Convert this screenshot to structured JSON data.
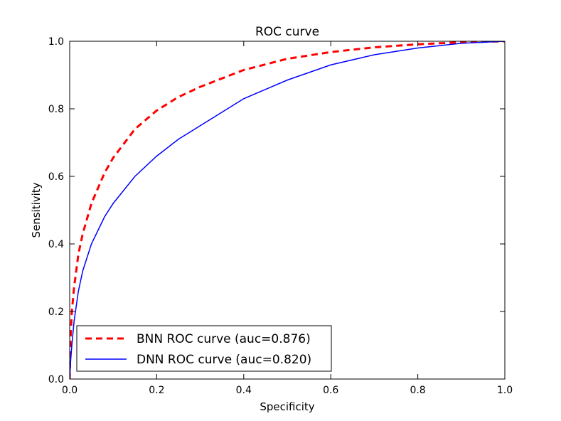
{
  "chart_data": {
    "type": "line",
    "title": "ROC curve",
    "xlabel": "Specificity",
    "ylabel": "Sensitivity",
    "xlim": [
      0.0,
      1.0
    ],
    "ylim": [
      0.0,
      1.0
    ],
    "xticks": [
      "0.0",
      "0.2",
      "0.4",
      "0.6",
      "0.8",
      "1.0"
    ],
    "yticks": [
      "0.0",
      "0.2",
      "0.4",
      "0.6",
      "0.8",
      "1.0"
    ],
    "grid": false,
    "legend_position": "lower-left",
    "series": [
      {
        "name": "BNN ROC curve (auc=0.876)",
        "color": "#ff0000",
        "style": "dashed",
        "x": [
          0,
          0.002,
          0.005,
          0.01,
          0.02,
          0.03,
          0.05,
          0.08,
          0.1,
          0.15,
          0.2,
          0.25,
          0.3,
          0.4,
          0.5,
          0.6,
          0.7,
          0.8,
          0.9,
          1.0
        ],
        "y": [
          0,
          0.12,
          0.2,
          0.27,
          0.37,
          0.43,
          0.52,
          0.61,
          0.655,
          0.74,
          0.795,
          0.835,
          0.865,
          0.915,
          0.948,
          0.968,
          0.982,
          0.991,
          0.997,
          1.0
        ]
      },
      {
        "name": "DNN ROC curve (auc=0.820)",
        "color": "#0000ff",
        "style": "solid",
        "x": [
          0,
          0.002,
          0.005,
          0.01,
          0.02,
          0.03,
          0.05,
          0.08,
          0.1,
          0.15,
          0.2,
          0.25,
          0.3,
          0.4,
          0.5,
          0.6,
          0.7,
          0.8,
          0.9,
          1.0
        ],
        "y": [
          0,
          0.05,
          0.1,
          0.17,
          0.26,
          0.32,
          0.4,
          0.48,
          0.52,
          0.6,
          0.66,
          0.71,
          0.75,
          0.83,
          0.885,
          0.93,
          0.96,
          0.98,
          0.994,
          1.0
        ]
      }
    ]
  }
}
